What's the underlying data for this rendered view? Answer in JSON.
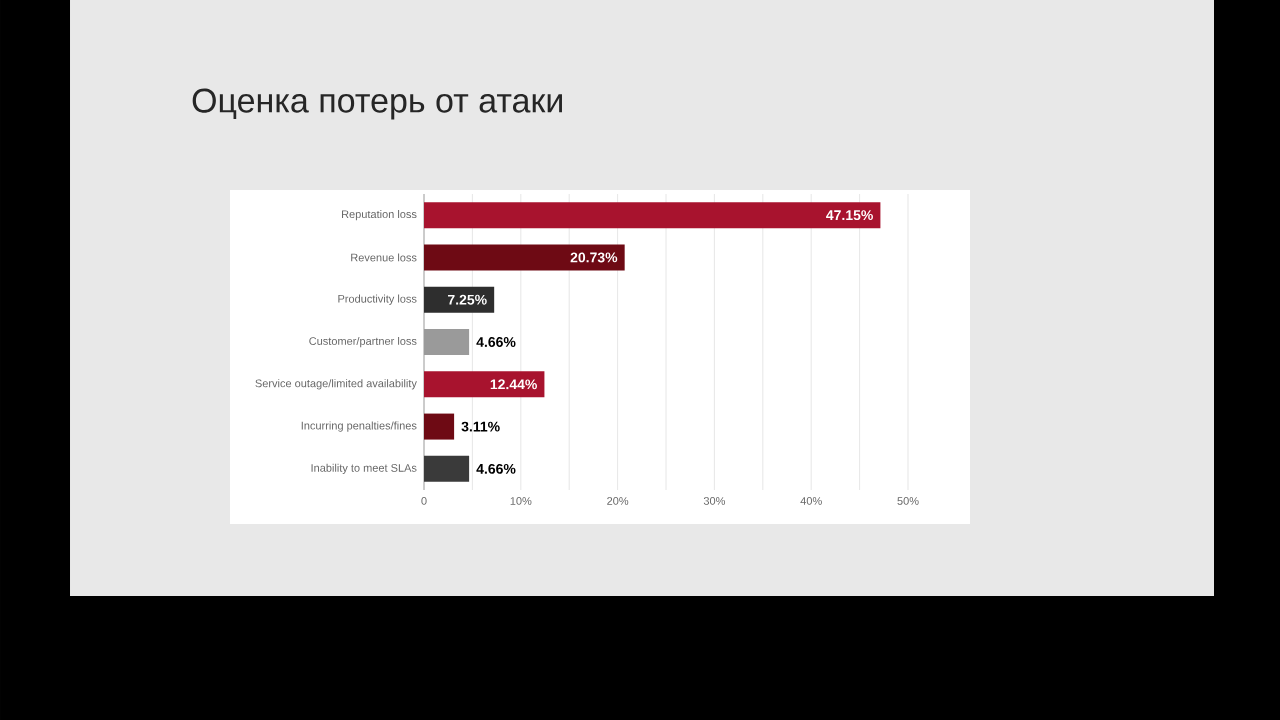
{
  "chart_data": {
    "type": "bar",
    "orientation": "horizontal",
    "title": "Оценка потерь от атаки",
    "categories": [
      "Reputation loss",
      "Revenue loss",
      "Productivity loss",
      "Customer/partner loss",
      "Service outage/limited availability",
      "Incurring penalties/fines",
      "Inability to meet SLAs"
    ],
    "values": [
      47.15,
      20.73,
      7.25,
      4.66,
      12.44,
      3.11,
      4.66
    ],
    "colors": [
      "#a8132e",
      "#6e0a14",
      "#2e2e2e",
      "#9a9a9a",
      "#a8132e",
      "#6e0a14",
      "#3a3a3a"
    ],
    "value_labels": [
      "47.15%",
      "20.73%",
      "7.25%",
      "4.66%",
      "12.44%",
      "3.11%",
      "4.66%"
    ],
    "xlim": [
      0,
      50
    ],
    "xticks": [
      0,
      {
        "value": 5,
        "label": null
      },
      {
        "value": 10,
        "label": "10%"
      },
      {
        "value": 15,
        "label": null
      },
      {
        "value": 20,
        "label": "20%"
      },
      {
        "value": 25,
        "label": null
      },
      {
        "value": 30,
        "label": "30%"
      },
      {
        "value": 35,
        "label": null
      },
      {
        "value": 40,
        "label": "40%"
      },
      {
        "value": 45,
        "label": null
      },
      {
        "value": 50,
        "label": "50%"
      }
    ],
    "grid": "x"
  }
}
